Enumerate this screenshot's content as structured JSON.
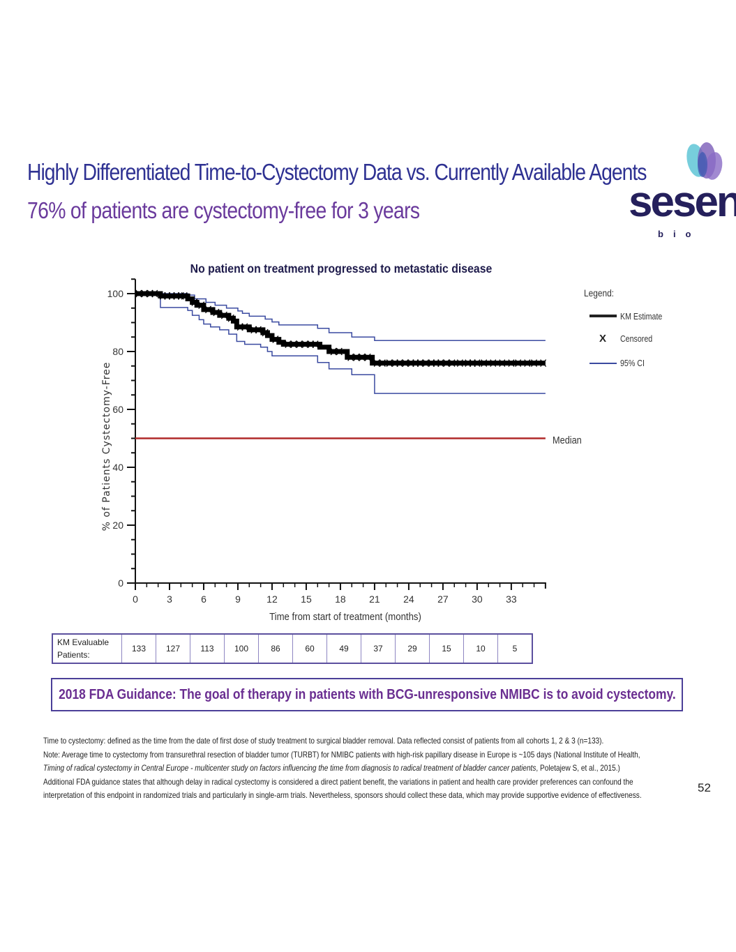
{
  "slide": {
    "title": "Highly Differentiated Time-to-Cystectomy Data vs. Currently Available Agents",
    "subtitle": "76% of patients are cystectomy-free for 3 years",
    "page_number": "52",
    "logo": {
      "word": "sesen",
      "sub": "bio",
      "icon": "petals-logo-icon"
    },
    "colors": {
      "title": "#2e3192",
      "subtitle": "#6a3a9c",
      "km": "#000000",
      "ci": "#3a4aa0",
      "median": "#b02a2a",
      "guidance": "#6a2e91"
    }
  },
  "chart_data": {
    "type": "line",
    "title": "No patient on treatment progressed to metastatic disease",
    "xlabel": "Time from start of treatment (months)",
    "ylabel": "% of Patients Cystectomy-Free",
    "xlim": [
      0,
      36
    ],
    "ylim": [
      0,
      100
    ],
    "x_ticks": [
      0,
      3,
      6,
      9,
      12,
      15,
      18,
      21,
      24,
      27,
      30,
      33
    ],
    "y_ticks": [
      0,
      20,
      40,
      60,
      80,
      100
    ],
    "legend": {
      "heading": "Legend:",
      "placement": "top-right",
      "items": [
        {
          "label": "KM Estimate",
          "marker": "line-thick"
        },
        {
          "label": "Censored",
          "marker": "X"
        },
        {
          "label": "95% CI",
          "marker": "line-thin"
        }
      ]
    },
    "median_label": "Median",
    "median_value": 50,
    "series": [
      {
        "name": "KM Estimate",
        "steps": [
          [
            0,
            100
          ],
          [
            2.2,
            99.2
          ],
          [
            4.6,
            98.2
          ],
          [
            5.0,
            97
          ],
          [
            5.4,
            96
          ],
          [
            6.0,
            94.5
          ],
          [
            6.8,
            93.5
          ],
          [
            7.4,
            92.5
          ],
          [
            8.2,
            91.5
          ],
          [
            8.6,
            90.5
          ],
          [
            8.9,
            88.5
          ],
          [
            10.0,
            87.5
          ],
          [
            11.2,
            86.5
          ],
          [
            11.6,
            85.5
          ],
          [
            12.0,
            84.2
          ],
          [
            12.6,
            83.2
          ],
          [
            13.0,
            82.5
          ],
          [
            16.2,
            81.5
          ],
          [
            17.0,
            80
          ],
          [
            18.6,
            78
          ],
          [
            20.8,
            76
          ],
          [
            36,
            76
          ]
        ]
      },
      {
        "name": "95% CI upper",
        "steps": [
          [
            0,
            100
          ],
          [
            4.6,
            99.5
          ],
          [
            5.2,
            98.2
          ],
          [
            6.2,
            97
          ],
          [
            7.0,
            96
          ],
          [
            8.0,
            95
          ],
          [
            9.0,
            94
          ],
          [
            9.4,
            93.2
          ],
          [
            10.0,
            92.2
          ],
          [
            11.4,
            91.2
          ],
          [
            12.0,
            90.2
          ],
          [
            12.6,
            89.2
          ],
          [
            16.0,
            88
          ],
          [
            17.0,
            86.5
          ],
          [
            19.0,
            85
          ],
          [
            21.0,
            83.8
          ],
          [
            36,
            83.8
          ]
        ]
      },
      {
        "name": "95% CI lower",
        "steps": [
          [
            0,
            100
          ],
          [
            2.2,
            95.2
          ],
          [
            4.6,
            94.2
          ],
          [
            5.0,
            92.5
          ],
          [
            5.6,
            91
          ],
          [
            6.0,
            89.5
          ],
          [
            6.6,
            88.5
          ],
          [
            7.4,
            87.5
          ],
          [
            8.2,
            86
          ],
          [
            8.9,
            83.5
          ],
          [
            9.6,
            82.5
          ],
          [
            11.0,
            81.5
          ],
          [
            11.6,
            80
          ],
          [
            12.0,
            78.5
          ],
          [
            16.0,
            76.2
          ],
          [
            17.0,
            74
          ],
          [
            19.0,
            72
          ],
          [
            21.0,
            65.5
          ],
          [
            36,
            65.5
          ]
        ]
      }
    ],
    "censored_markers": [
      0.3,
      0.8,
      1.3,
      1.7,
      2.4,
      2.8,
      3.2,
      3.6,
      4.0,
      4.3,
      5.2,
      5.8,
      6.4,
      7.1,
      7.8,
      8.4,
      9.2,
      9.6,
      10.4,
      10.8,
      11.4,
      12.3,
      13.4,
      13.9,
      14.4,
      14.9,
      15.4,
      15.8,
      17.4,
      17.9,
      18.9,
      19.4,
      19.9,
      20.4,
      21.2,
      21.7,
      22.3,
      22.8,
      23.2,
      23.7,
      24.2,
      24.6,
      25.0,
      25.5,
      26.0,
      26.4,
      26.8,
      27.3,
      27.8,
      28.5,
      29.2,
      29.6,
      30.0,
      30.6,
      31.4,
      32.2,
      33.0,
      33.6,
      34.4,
      35.0,
      35.8
    ]
  },
  "km_table": {
    "label_line1": "KM Evaluable",
    "label_line2": "Patients:",
    "values": [
      "133",
      "127",
      "113",
      "100",
      "86",
      "60",
      "49",
      "37",
      "29",
      "15",
      "10",
      "5"
    ]
  },
  "guidance": {
    "text": "2018 FDA Guidance: The goal of therapy in patients with BCG-unresponsive NMIBC is to avoid cystectomy."
  },
  "footnotes": {
    "line1": "Time to cystectomy: defined as the time from the date of first dose of study treatment to surgical bladder removal. Data reflected consist of patients from all cohorts 1, 2 & 3 (n=133).",
    "line2": "Note: Average time to cystectomy from transurethral resection of bladder tumor (TURBT) for NMIBC patients with high-risk papillary disease in Europe is ~105 days (National Institute of Health,",
    "line3_italic": "Timing of radical cystectomy in Central Europe - multicenter study on factors influencing the time from diagnosis to radical treatment of bladder cancer patients",
    "line3_rest": ", Poletajew S, et al., 2015.)",
    "line4": "Additional FDA guidance states that although delay in radical cystectomy is considered a direct patient benefit, the variations in patient and health care provider preferences can confound the",
    "line5": "interpretation of this endpoint in randomized trials and particularly in single-arm trials. Nevertheless, sponsors should collect these data, which may provide supportive evidence of effectiveness."
  }
}
